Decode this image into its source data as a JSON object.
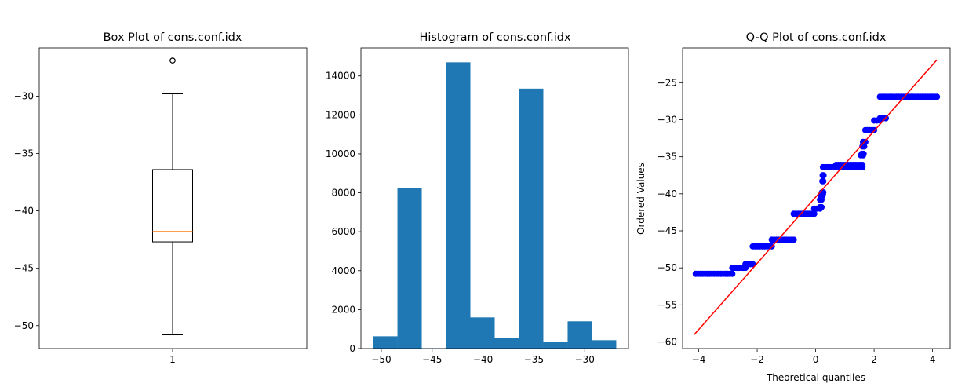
{
  "chart_data": [
    {
      "type": "box",
      "title": "Box Plot of cons.conf.idx",
      "xlabel": "",
      "ylabel": "",
      "categories": [
        "1"
      ],
      "stats": {
        "whisker_low": -50.8,
        "q1": -42.7,
        "median": -41.8,
        "q3": -36.4,
        "whisker_high": -29.8
      },
      "outliers": [
        -26.9
      ],
      "ylim": [
        -52.0,
        -25.8
      ],
      "yticks": [
        -50,
        -45,
        -40,
        -35,
        -30
      ],
      "colors": {
        "box": "#000000",
        "median": "#ff7f0e"
      }
    },
    {
      "type": "bar",
      "title": "Histogram of cons.conf.idx",
      "xlabel": "",
      "ylabel": "",
      "bin_edges": [
        -50.8,
        -48.41,
        -46.02,
        -43.63,
        -41.24,
        -38.85,
        -36.46,
        -34.07,
        -31.68,
        -29.29,
        -26.9
      ],
      "counts": [
        630,
        8250,
        20,
        14700,
        1600,
        550,
        13350,
        350,
        1400,
        430
      ],
      "xlim": [
        -52.0,
        -25.7
      ],
      "ylim": [
        0,
        15440
      ],
      "xticks": [
        -50,
        -45,
        -40,
        -35,
        -30
      ],
      "yticks": [
        0,
        2000,
        4000,
        6000,
        8000,
        10000,
        12000,
        14000
      ],
      "colors": {
        "bar": "#1f77b4"
      }
    },
    {
      "type": "scatter",
      "title": "Q-Q Plot of cons.conf.idx",
      "xlabel": "Theoretical quantiles",
      "ylabel": "Ordered Values",
      "steps": [
        {
          "value": -50.8,
          "x_from": -4.1,
          "x_to": -2.85
        },
        {
          "value": -50.0,
          "x_from": -2.85,
          "x_to": -2.4
        },
        {
          "value": -49.5,
          "x_from": -2.4,
          "x_to": -2.15
        },
        {
          "value": -47.1,
          "x_from": -2.15,
          "x_to": -1.5
        },
        {
          "value": -46.2,
          "x_from": -1.5,
          "x_to": -0.75
        },
        {
          "value": -42.7,
          "x_from": -0.75,
          "x_to": -0.05
        },
        {
          "value": -42.0,
          "x_from": -0.05,
          "x_to": 0.15
        },
        {
          "value": -41.8,
          "x_from": 0.15,
          "x_to": 0.2
        },
        {
          "value": -40.8,
          "x_from": 0.15,
          "x_to": 0.2
        },
        {
          "value": -40.3,
          "x_from": 0.18,
          "x_to": 0.22
        },
        {
          "value": -40.0,
          "x_from": 0.2,
          "x_to": 0.25
        },
        {
          "value": -39.8,
          "x_from": 0.22,
          "x_to": 0.26
        },
        {
          "value": -38.3,
          "x_from": 0.23,
          "x_to": 0.26
        },
        {
          "value": -37.5,
          "x_from": 0.24,
          "x_to": 0.27
        },
        {
          "value": -36.4,
          "x_from": 0.25,
          "x_to": 1.6
        },
        {
          "value": -36.1,
          "x_from": 0.7,
          "x_to": 1.6
        },
        {
          "value": -34.8,
          "x_from": 1.55,
          "x_to": 1.62
        },
        {
          "value": -34.6,
          "x_from": 1.58,
          "x_to": 1.64
        },
        {
          "value": -33.6,
          "x_from": 1.6,
          "x_to": 1.66
        },
        {
          "value": -33.0,
          "x_from": 1.62,
          "x_to": 1.7
        },
        {
          "value": -31.4,
          "x_from": 1.7,
          "x_to": 2.0
        },
        {
          "value": -30.1,
          "x_from": 2.0,
          "x_to": 2.2
        },
        {
          "value": -29.8,
          "x_from": 2.2,
          "x_to": 2.4
        },
        {
          "value": -26.9,
          "x_from": 2.2,
          "x_to": 4.15
        }
      ],
      "fit_line": {
        "x": [
          -4.15,
          4.15
        ],
        "y": [
          -59.0,
          -21.9
        ]
      },
      "xlim": [
        -4.55,
        4.6
      ],
      "ylim": [
        -60.9,
        -20.3
      ],
      "xticks": [
        -4,
        -2,
        0,
        2,
        4
      ],
      "yticks": [
        -60,
        -55,
        -50,
        -45,
        -40,
        -35,
        -30,
        -25
      ],
      "colors": {
        "points": "#0000ff",
        "line": "#ff0000"
      }
    }
  ]
}
